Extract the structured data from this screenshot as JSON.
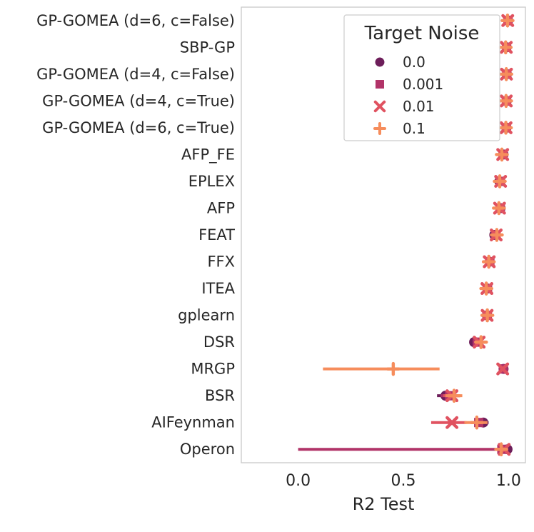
{
  "colors": {
    "text": "#262626",
    "spine": "#c9c9c9",
    "legend_border": "#cccccc",
    "background": "#ffffff"
  },
  "chart_data": {
    "type": "scatter",
    "subtype": "pointplot-horizontal",
    "title": "",
    "xlabel": "R2 Test",
    "ylabel": "",
    "xlim": [
      -0.27,
      1.08
    ],
    "xticks": [
      0.0,
      0.5,
      1.0
    ],
    "xtick_labels": [
      "0.0",
      "0.5",
      "1.0"
    ],
    "grid": false,
    "legend": {
      "title": "Target Noise",
      "position": "upper right"
    },
    "categories": [
      "GP-GOMEA (d=6, c=False)",
      "SBP-GP",
      "GP-GOMEA (d=4, c=False)",
      "GP-GOMEA (d=4, c=True)",
      "GP-GOMEA (d=6, c=True)",
      "AFP_FE",
      "EPLEX",
      "AFP",
      "FEAT",
      "FFX",
      "ITEA",
      "gplearn",
      "DSR",
      "MRGP",
      "BSR",
      "AIFeynman",
      "Operon"
    ],
    "series": [
      {
        "name": "0.0",
        "marker": "circle",
        "color": "#6d1e5a",
        "values": [
          0.998,
          0.991,
          0.992,
          0.991,
          0.99,
          0.976,
          0.956,
          0.962,
          0.932,
          0.91,
          0.899,
          0.897,
          0.836,
          0.976,
          0.7,
          0.88,
          0.995
        ],
        "ci": [
          [
            0.995,
            1.0
          ],
          [
            0.986,
            0.995
          ],
          [
            0.988,
            0.996
          ],
          [
            0.987,
            0.995
          ],
          [
            0.985,
            0.994
          ],
          [
            0.966,
            0.984
          ],
          [
            0.944,
            0.966
          ],
          [
            0.951,
            0.971
          ],
          [
            0.912,
            0.948
          ],
          [
            0.896,
            0.924
          ],
          [
            0.884,
            0.913
          ],
          [
            0.877,
            0.915
          ],
          [
            0.815,
            0.856
          ],
          [
            0.966,
            0.985
          ],
          [
            0.66,
            0.742
          ],
          [
            0.852,
            0.905
          ],
          [
            0.988,
            1.0
          ]
        ]
      },
      {
        "name": "0.001",
        "marker": "square",
        "color": "#b13368",
        "values": [
          0.997,
          0.99,
          0.991,
          0.99,
          0.989,
          0.974,
          0.961,
          0.96,
          0.94,
          0.911,
          0.9,
          0.899,
          0.851,
          0.975,
          0.72,
          0.858,
          0.968
        ],
        "ci": [
          [
            0.994,
            0.999
          ],
          [
            0.985,
            0.994
          ],
          [
            0.987,
            0.995
          ],
          [
            0.986,
            0.994
          ],
          [
            0.984,
            0.993
          ],
          [
            0.964,
            0.982
          ],
          [
            0.949,
            0.97
          ],
          [
            0.949,
            0.969
          ],
          [
            0.922,
            0.953
          ],
          [
            0.897,
            0.925
          ],
          [
            0.885,
            0.914
          ],
          [
            0.88,
            0.917
          ],
          [
            0.83,
            0.87
          ],
          [
            0.965,
            0.984
          ],
          [
            0.678,
            0.76
          ],
          [
            0.82,
            0.888
          ],
          [
            0.0,
            0.993
          ]
        ]
      },
      {
        "name": "0.01",
        "marker": "x",
        "color": "#e05260",
        "values": [
          0.996,
          0.989,
          0.99,
          0.989,
          0.988,
          0.972,
          0.962,
          0.957,
          0.941,
          0.908,
          0.897,
          0.898,
          0.86,
          0.972,
          0.731,
          0.731,
          0.979
        ],
        "ci": [
          [
            0.993,
            0.999
          ],
          [
            0.984,
            0.993
          ],
          [
            0.986,
            0.994
          ],
          [
            0.985,
            0.993
          ],
          [
            0.983,
            0.992
          ],
          [
            0.962,
            0.98
          ],
          [
            0.95,
            0.971
          ],
          [
            0.946,
            0.967
          ],
          [
            0.923,
            0.954
          ],
          [
            0.894,
            0.922
          ],
          [
            0.882,
            0.911
          ],
          [
            0.879,
            0.916
          ],
          [
            0.84,
            0.878
          ],
          [
            0.962,
            0.981
          ],
          [
            0.69,
            0.77
          ],
          [
            0.632,
            0.8
          ],
          [
            0.952,
            0.998
          ]
        ]
      },
      {
        "name": "0.1",
        "marker": "plus",
        "color": "#f68d5c",
        "values": [
          0.995,
          0.986,
          0.989,
          0.988,
          0.987,
          0.968,
          0.958,
          0.954,
          0.944,
          0.906,
          0.894,
          0.899,
          0.869,
          0.452,
          0.741,
          0.849,
          0.965
        ],
        "ci": [
          [
            0.991,
            0.998
          ],
          [
            0.98,
            0.991
          ],
          [
            0.985,
            0.993
          ],
          [
            0.984,
            0.992
          ],
          [
            0.982,
            0.991
          ],
          [
            0.957,
            0.977
          ],
          [
            0.945,
            0.968
          ],
          [
            0.942,
            0.964
          ],
          [
            0.921,
            0.959
          ],
          [
            0.892,
            0.92
          ],
          [
            0.878,
            0.908
          ],
          [
            0.876,
            0.921
          ],
          [
            0.846,
            0.888
          ],
          [
            0.118,
            0.672
          ],
          [
            0.7,
            0.78
          ],
          [
            0.79,
            0.9
          ],
          [
            0.938,
            0.984
          ]
        ]
      }
    ]
  }
}
